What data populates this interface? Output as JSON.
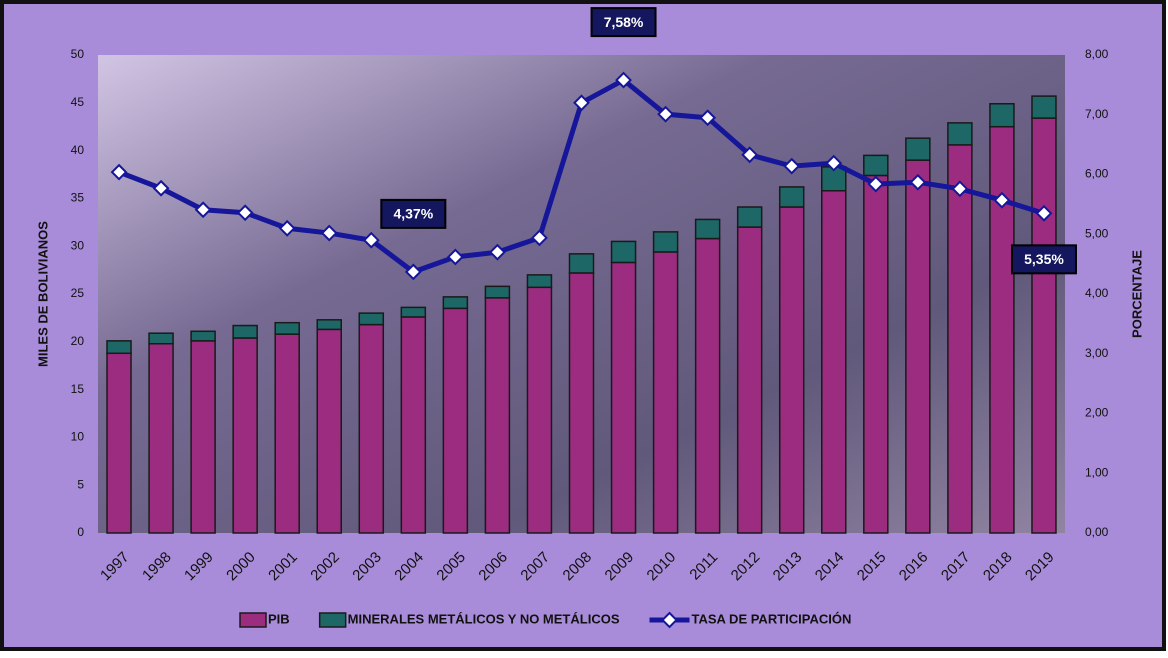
{
  "chart_data": {
    "type": "bar",
    "stacked": true,
    "ylabel": "MILES DE BOLIVIANOS",
    "y2label": "PORCENTAJE",
    "categories": [
      "1997",
      "1998",
      "1999",
      "2000",
      "2001",
      "2002",
      "2003",
      "2004",
      "2005",
      "2006",
      "2007",
      "2008",
      "2009",
      "2010",
      "2011",
      "2012",
      "2013",
      "2014",
      "2015",
      "2016",
      "2017",
      "2018",
      "2019"
    ],
    "series": [
      {
        "name": "PIB",
        "type": "bar",
        "color": "#9c2c80",
        "values": [
          18.8,
          19.8,
          20.1,
          20.4,
          20.8,
          21.3,
          21.8,
          22.6,
          23.5,
          24.6,
          25.7,
          27.2,
          28.3,
          29.4,
          30.8,
          32.0,
          34.1,
          35.8,
          37.4,
          39.0,
          40.6,
          42.5,
          43.4
        ]
      },
      {
        "name": "MINERALES METÁLICOS Y NO METÁLICOS",
        "type": "bar",
        "color": "#1e6767",
        "values": [
          1.3,
          1.1,
          1.0,
          1.3,
          1.2,
          1.0,
          1.2,
          1.0,
          1.2,
          1.2,
          1.3,
          2.0,
          2.2,
          2.1,
          2.0,
          2.1,
          2.1,
          2.5,
          2.1,
          2.3,
          2.3,
          2.4,
          2.3
        ]
      },
      {
        "name": "TASA DE PARTICIPACIÓN",
        "type": "line",
        "axis": "y2",
        "color": "#16169a",
        "values": [
          6.04,
          5.77,
          5.41,
          5.36,
          5.1,
          5.02,
          4.9,
          4.37,
          4.62,
          4.7,
          4.94,
          7.2,
          7.58,
          7.01,
          6.95,
          6.33,
          6.14,
          6.19,
          5.84,
          5.87,
          5.76,
          5.57,
          5.35
        ],
        "value_labels": [
          null,
          null,
          null,
          null,
          null,
          null,
          null,
          "4,37%",
          null,
          null,
          null,
          null,
          "7,58%",
          null,
          null,
          null,
          null,
          null,
          null,
          null,
          null,
          null,
          "5,35%"
        ]
      }
    ],
    "ylim": [
      0,
      50
    ],
    "yticks": [
      0,
      5,
      10,
      15,
      20,
      25,
      30,
      35,
      40,
      45,
      50
    ],
    "y2lim": [
      0,
      8
    ],
    "y2ticks": [
      {
        "value": 0,
        "label": "0,00"
      },
      {
        "value": 1,
        "label": "1,00"
      },
      {
        "value": 2,
        "label": "2,00"
      },
      {
        "value": 3,
        "label": "3,00"
      },
      {
        "value": 4,
        "label": "4,00"
      },
      {
        "value": 5,
        "label": "5,00"
      },
      {
        "value": 6,
        "label": "6,00"
      },
      {
        "value": 7,
        "label": "7,00"
      },
      {
        "value": 8,
        "label": "8,00"
      }
    ],
    "legend": "bottom",
    "grid": false
  }
}
